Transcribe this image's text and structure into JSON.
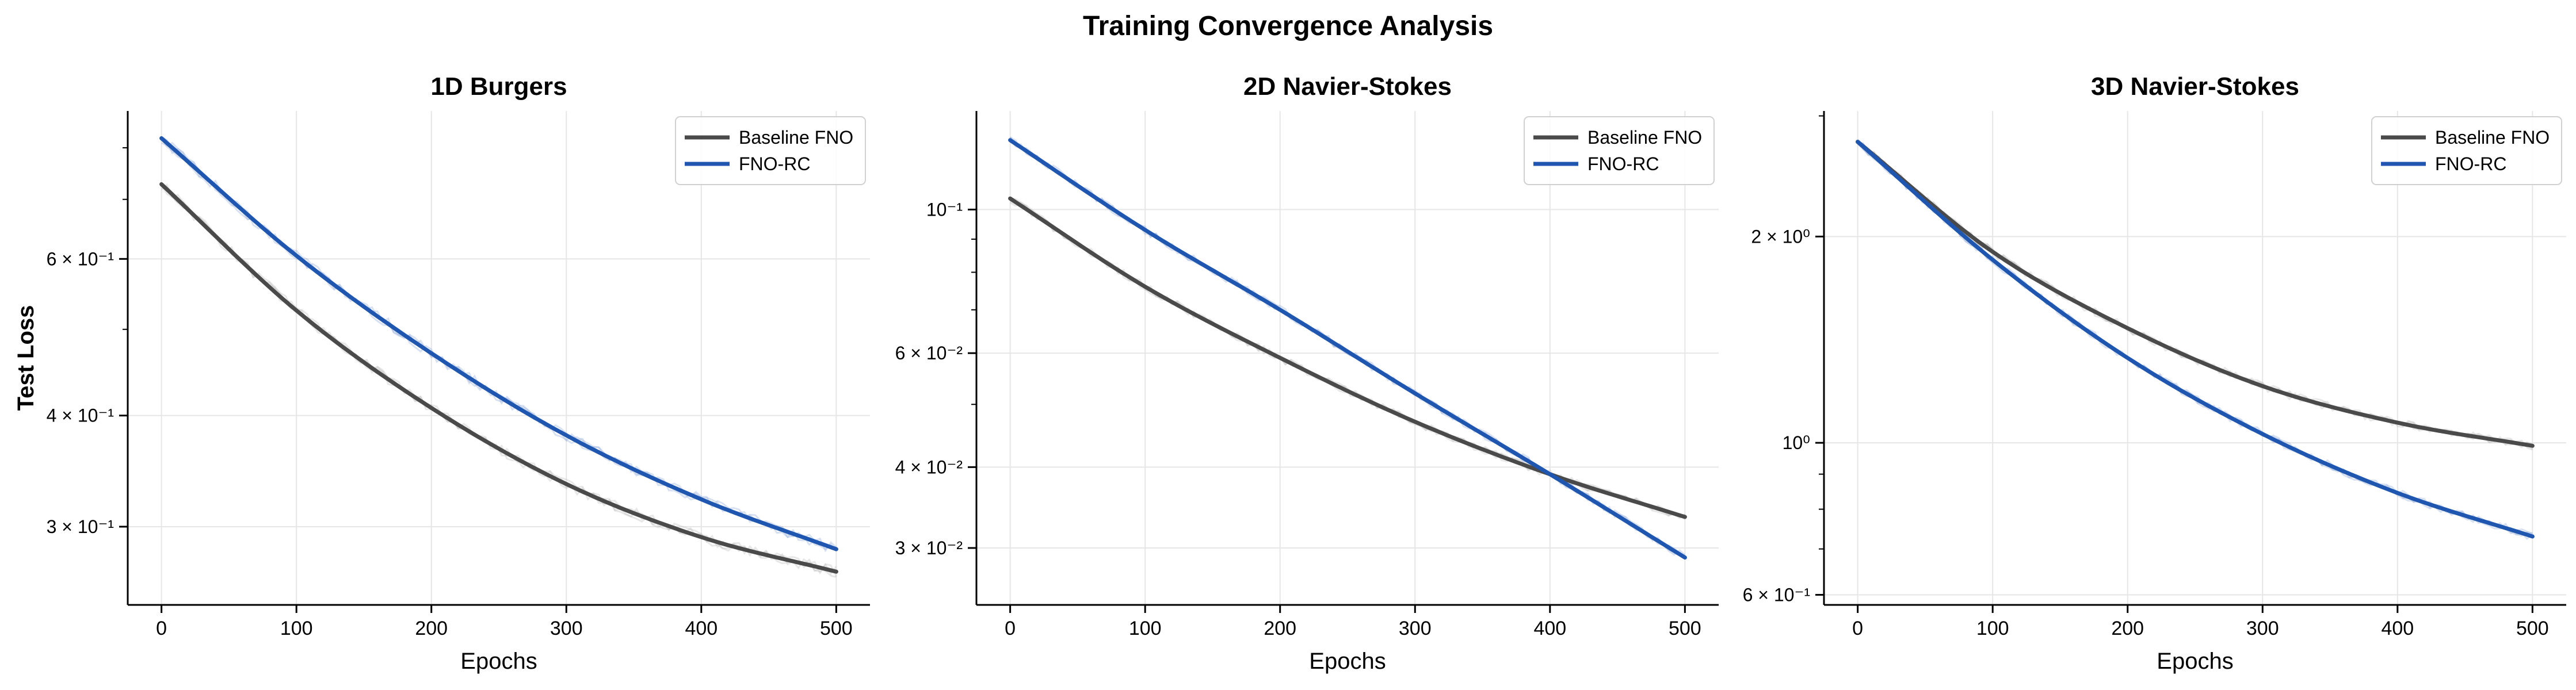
{
  "figure": {
    "title": "Training Convergence Analysis"
  },
  "colors": {
    "baseline": "#4a4a4a",
    "fnorc": "#1f56b0",
    "noise": "#b9b9b9",
    "grid": "#e6e6e6"
  },
  "chart_data": [
    {
      "type": "line",
      "title": "1D Burgers",
      "xlabel": "Epochs",
      "ylabel": "Test Loss",
      "yscale": "log",
      "xlim": [
        -25,
        525
      ],
      "ylim": [
        0.245,
        0.88
      ],
      "xticks": [
        0,
        100,
        200,
        300,
        400,
        500
      ],
      "yticks": [
        {
          "value": 0.3,
          "label": "3 × 10⁻¹"
        },
        {
          "value": 0.4,
          "label": "4 × 10⁻¹"
        },
        {
          "value": 0.6,
          "label": "6 × 10⁻¹"
        }
      ],
      "grid": true,
      "legend_position": "top-right",
      "x": [
        0,
        100,
        200,
        300,
        400,
        500
      ],
      "series": [
        {
          "name": "Baseline FNO",
          "key": "baseline",
          "values": [
            0.728,
            0.525,
            0.408,
            0.335,
            0.292,
            0.267
          ]
        },
        {
          "name": "FNO-RC",
          "key": "fnorc",
          "values": [
            0.82,
            0.605,
            0.47,
            0.38,
            0.322,
            0.283
          ]
        }
      ]
    },
    {
      "type": "line",
      "title": "2D Navier-Stokes",
      "xlabel": "Epochs",
      "ylabel": "",
      "yscale": "log",
      "xlim": [
        -25,
        525
      ],
      "ylim": [
        0.0245,
        0.142
      ],
      "xticks": [
        0,
        100,
        200,
        300,
        400,
        500
      ],
      "yticks": [
        {
          "value": 0.03,
          "label": "3 × 10⁻²"
        },
        {
          "value": 0.04,
          "label": "4 × 10⁻²"
        },
        {
          "value": 0.06,
          "label": "6 × 10⁻²"
        },
        {
          "value": 0.1,
          "label": "10⁻¹"
        }
      ],
      "grid": true,
      "legend_position": "top-right",
      "x": [
        0,
        100,
        200,
        300,
        400,
        500
      ],
      "series": [
        {
          "name": "Baseline FNO",
          "key": "baseline",
          "values": [
            0.104,
            0.076,
            0.059,
            0.047,
            0.039,
            0.0335
          ]
        },
        {
          "name": "FNO-RC",
          "key": "fnorc",
          "values": [
            0.128,
            0.093,
            0.07,
            0.052,
            0.039,
            0.029
          ]
        }
      ]
    },
    {
      "type": "line",
      "title": "3D Navier-Stokes",
      "xlabel": "Epochs",
      "ylabel": "",
      "yscale": "log",
      "xlim": [
        -25,
        525
      ],
      "ylim": [
        0.58,
        3.05
      ],
      "xticks": [
        0,
        100,
        200,
        300,
        400,
        500
      ],
      "yticks": [
        {
          "value": 0.6,
          "label": "6 × 10⁻¹"
        },
        {
          "value": 1.0,
          "label": "10⁰"
        },
        {
          "value": 2.0,
          "label": "2 × 10⁰"
        }
      ],
      "grid": true,
      "legend_position": "top-right",
      "x": [
        0,
        100,
        200,
        300,
        400,
        500
      ],
      "series": [
        {
          "name": "Baseline FNO",
          "key": "baseline",
          "values": [
            2.75,
            1.9,
            1.47,
            1.21,
            1.07,
            0.99
          ]
        },
        {
          "name": "FNO-RC",
          "key": "fnorc",
          "values": [
            2.75,
            1.85,
            1.33,
            1.03,
            0.845,
            0.73
          ]
        }
      ]
    }
  ]
}
